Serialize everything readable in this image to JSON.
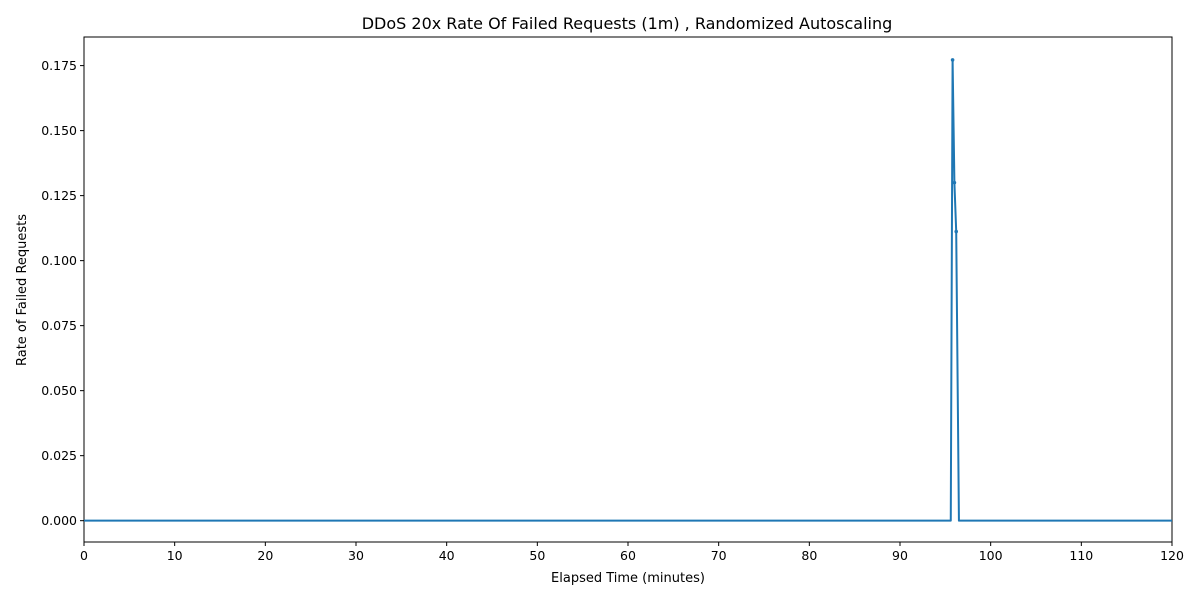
{
  "chart_data": {
    "type": "line",
    "title": "DDoS 20x Rate Of Failed Requests (1m) , Randomized Autoscaling",
    "xlabel": "Elapsed Time (minutes)",
    "ylabel": "Rate of Failed Requests",
    "xlim": [
      0,
      120
    ],
    "ylim": [
      -0.0082,
      0.186
    ],
    "xticks": [
      0,
      10,
      20,
      30,
      40,
      50,
      60,
      70,
      80,
      90,
      100,
      110,
      120
    ],
    "yticks": [
      0.0,
      0.025,
      0.05,
      0.075,
      0.1,
      0.125,
      0.15,
      0.175
    ],
    "ytick_labels": [
      "0.000",
      "0.025",
      "0.050",
      "0.075",
      "0.100",
      "0.125",
      "0.150",
      "0.175"
    ],
    "grid": false,
    "legend": "none",
    "color": "#1f77b4",
    "series": [
      {
        "name": "",
        "points": [
          [
            0,
            0
          ],
          [
            95.6,
            0
          ],
          [
            95.8,
            0.1772
          ],
          [
            96.0,
            0.13
          ],
          [
            96.2,
            0.1112
          ],
          [
            96.5,
            0
          ],
          [
            120,
            0
          ]
        ]
      }
    ]
  }
}
